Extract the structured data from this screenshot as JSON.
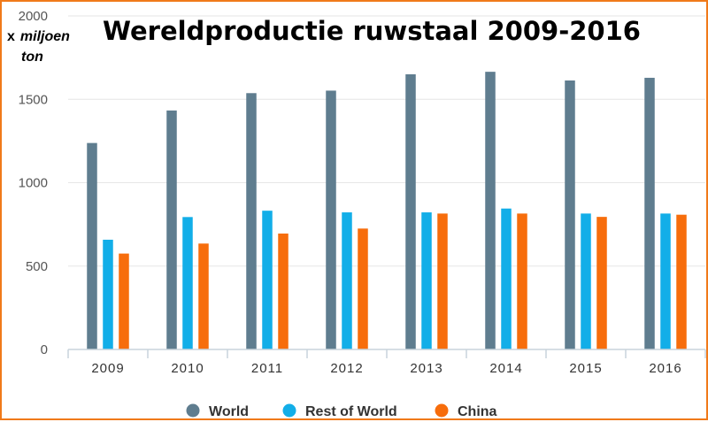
{
  "chart_data": {
    "type": "bar",
    "title": "Wereldproductie ruwstaal 2009-2016",
    "ylabel_prefix": "x",
    "ylabel": "miljoen",
    "ylabel_line2": "ton",
    "categories": [
      "2009",
      "2010",
      "2011",
      "2012",
      "2013",
      "2014",
      "2015",
      "2016"
    ],
    "series": [
      {
        "name": "World",
        "color": "#5f7d8f",
        "values": [
          1238,
          1433,
          1537,
          1552,
          1650,
          1665,
          1613,
          1629
        ]
      },
      {
        "name": "Rest of World",
        "color": "#12aee8",
        "values": [
          658,
          794,
          832,
          822,
          822,
          845,
          815,
          815
        ]
      },
      {
        "name": "China",
        "color": "#f76d0c",
        "values": [
          575,
          635,
          695,
          725,
          815,
          815,
          795,
          808
        ]
      }
    ],
    "ylim": [
      0,
      2000
    ],
    "yticks": [
      0,
      500,
      1000,
      1500,
      2000
    ],
    "grid": true,
    "legend_position": "bottom-center"
  }
}
